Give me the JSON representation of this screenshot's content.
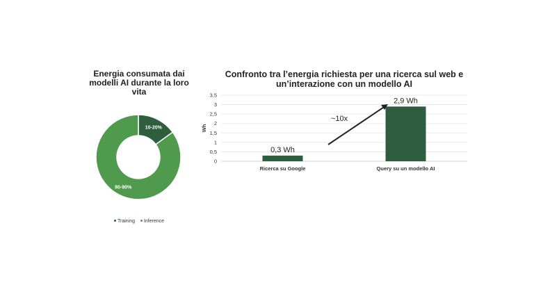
{
  "chart_data": [
    {
      "type": "pie",
      "title": "Energia consumata dai modelli AI durante la loro vita",
      "slices": [
        {
          "label": "Training",
          "value_label": "10-20%",
          "value": 15,
          "color": "#2e5e3d"
        },
        {
          "label": "Inference",
          "value_label": "80-90%",
          "value": 85,
          "color": "#4f9a4c"
        }
      ],
      "legend": "bottom"
    },
    {
      "type": "bar",
      "title": "Confronto tra l’energia richiesta per una ricerca sul web e un’interazione con un modello AI",
      "categories": [
        "Ricerca su Google",
        "Query su un modello AI"
      ],
      "values": [
        0.3,
        2.9
      ],
      "data_labels": [
        "0,3 Wh",
        "2,9 Wh"
      ],
      "ylabel": "Wh",
      "ylim": [
        0,
        3.5
      ],
      "yticks": [
        "0",
        "0,5",
        "1",
        "1,5",
        "2",
        "2,5",
        "3",
        "3,5"
      ],
      "bar_color": "#2e5e3d",
      "annotation": "~10x",
      "grid": true
    }
  ]
}
